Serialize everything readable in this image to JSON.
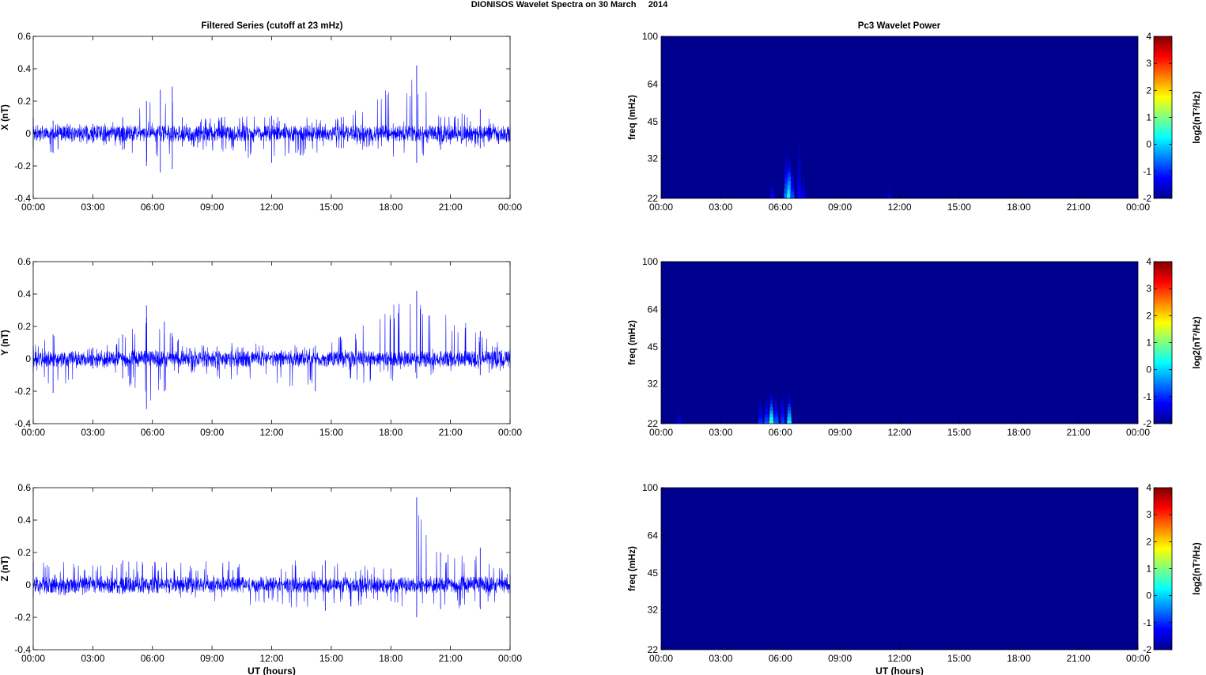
{
  "figure": {
    "title": "DIONISOS Wavelet Spectra on 30 March     2014",
    "left_column_title": "Filtered Series (cutoff at 23 mHz)",
    "right_column_title": "Pc3 Wavelet Power"
  },
  "colors": {
    "series_line": "#0000ff",
    "spectrum_background": "#00008f",
    "axis": "#000000",
    "colormap": [
      "#00008f",
      "#0000ff",
      "#0080ff",
      "#00ffff",
      "#80ff80",
      "#ffff00",
      "#ff8000",
      "#ff0000",
      "#800000"
    ]
  },
  "chart_data": [
    {
      "type": "line",
      "component": "X",
      "ylabel": "X (nT)",
      "xlabel": "",
      "ylim": [
        -0.4,
        0.6
      ],
      "yticks": [
        "-0.4",
        "-0.2",
        "0",
        "0.2",
        "0.4",
        "0.6"
      ],
      "xticks": [
        "00:00",
        "03:00",
        "06:00",
        "09:00",
        "12:00",
        "15:00",
        "18:00",
        "21:00",
        "00:00"
      ],
      "x_range_hours": [
        0,
        24
      ],
      "baseline_amplitude_nT": 0.05,
      "envelope": [
        {
          "hour": 0.0,
          "max": 0.1,
          "min": -0.09
        },
        {
          "hour": 1.0,
          "max": 0.08,
          "min": -0.12
        },
        {
          "hour": 3.0,
          "max": 0.06,
          "min": -0.06
        },
        {
          "hour": 4.5,
          "max": 0.1,
          "min": -0.1
        },
        {
          "hour": 5.7,
          "max": 0.2,
          "min": -0.2
        },
        {
          "hour": 6.4,
          "max": 0.27,
          "min": -0.24
        },
        {
          "hour": 7.0,
          "max": 0.29,
          "min": -0.22
        },
        {
          "hour": 7.5,
          "max": 0.1,
          "min": -0.08
        },
        {
          "hour": 12.0,
          "max": 0.11,
          "min": -0.18
        },
        {
          "hour": 15.5,
          "max": 0.1,
          "min": -0.09
        },
        {
          "hour": 19.3,
          "max": 0.42,
          "min": -0.18
        },
        {
          "hour": 20.5,
          "max": 0.1,
          "min": -0.1
        },
        {
          "hour": 22.5,
          "max": 0.15,
          "min": -0.09
        },
        {
          "hour": 24.0,
          "max": 0.05,
          "min": -0.05
        }
      ]
    },
    {
      "type": "line",
      "component": "Y",
      "ylabel": "Y (nT)",
      "xlabel": "",
      "ylim": [
        -0.4,
        0.6
      ],
      "yticks": [
        "-0.4",
        "-0.2",
        "0",
        "0.2",
        "0.4",
        "0.6"
      ],
      "xticks": [
        "00:00",
        "03:00",
        "06:00",
        "09:00",
        "12:00",
        "15:00",
        "18:00",
        "21:00",
        "00:00"
      ],
      "x_range_hours": [
        0,
        24
      ],
      "baseline_amplitude_nT": 0.05,
      "envelope": [
        {
          "hour": 0.0,
          "max": 0.08,
          "min": -0.08
        },
        {
          "hour": 1.0,
          "max": 0.15,
          "min": -0.21
        },
        {
          "hour": 3.0,
          "max": 0.07,
          "min": -0.06
        },
        {
          "hour": 4.5,
          "max": 0.15,
          "min": -0.12
        },
        {
          "hour": 5.7,
          "max": 0.33,
          "min": -0.31
        },
        {
          "hour": 6.6,
          "max": 0.23,
          "min": -0.2
        },
        {
          "hour": 7.3,
          "max": 0.12,
          "min": -0.09
        },
        {
          "hour": 14.2,
          "max": 0.08,
          "min": -0.2
        },
        {
          "hour": 19.3,
          "max": 0.42,
          "min": -0.12
        },
        {
          "hour": 22.5,
          "max": 0.17,
          "min": -0.1
        },
        {
          "hour": 24.0,
          "max": 0.06,
          "min": -0.06
        }
      ]
    },
    {
      "type": "line",
      "component": "Z",
      "ylabel": "Z (nT)",
      "xlabel": "UT (hours)",
      "ylim": [
        -0.4,
        0.6
      ],
      "yticks": [
        "-0.4",
        "-0.2",
        "0",
        "0.2",
        "0.4",
        "0.6"
      ],
      "xticks": [
        "00:00",
        "03:00",
        "06:00",
        "09:00",
        "12:00",
        "15:00",
        "18:00",
        "21:00",
        "00:00"
      ],
      "x_range_hours": [
        0,
        24
      ],
      "baseline_amplitude_nT": 0.05,
      "envelope": [
        {
          "hour": 0.0,
          "max": 0.14,
          "min": -0.08
        },
        {
          "hour": 4.5,
          "max": 0.15,
          "min": -0.06
        },
        {
          "hour": 14.7,
          "max": 0.15,
          "min": -0.16
        },
        {
          "hour": 18.0,
          "max": 0.1,
          "min": -0.1
        },
        {
          "hour": 19.3,
          "max": 0.54,
          "min": -0.2
        },
        {
          "hour": 20.5,
          "max": 0.2,
          "min": -0.15
        },
        {
          "hour": 22.5,
          "max": 0.23,
          "min": -0.15
        },
        {
          "hour": 24.0,
          "max": 0.06,
          "min": -0.06
        }
      ]
    },
    {
      "type": "heatmap",
      "component": "X",
      "ylabel": "freq (mHz)",
      "xlabel": "",
      "y_scale": "log",
      "ylim": [
        22,
        100
      ],
      "yticks": [
        "22",
        "32",
        "45",
        "64",
        "100"
      ],
      "xticks": [
        "00:00",
        "03:00",
        "06:00",
        "09:00",
        "12:00",
        "15:00",
        "18:00",
        "21:00",
        "00:00"
      ],
      "x_range_hours": [
        0,
        24
      ],
      "colorbar_label": "log2(nT²/Hz)",
      "colorbar_range": [
        -2,
        4
      ],
      "colorbar_ticks": [
        "-2",
        "-1",
        "0",
        "1",
        "2",
        "3",
        "4"
      ],
      "background_value": -2,
      "features": [
        {
          "hour": 5.6,
          "fmax": 26,
          "peak": -1.2
        },
        {
          "hour": 6.3,
          "fmax": 35,
          "peak": -0.5
        },
        {
          "hour": 6.45,
          "fmax": 33,
          "peak": 0.4
        },
        {
          "hour": 6.6,
          "fmax": 30,
          "peak": -0.8
        },
        {
          "hour": 6.95,
          "fmax": 40,
          "peak": -1.3
        },
        {
          "hour": 7.15,
          "fmax": 28,
          "peak": -1.4
        },
        {
          "hour": 11.5,
          "fmax": 25,
          "peak": -1.6
        }
      ]
    },
    {
      "type": "heatmap",
      "component": "Y",
      "ylabel": "freq (mHz)",
      "xlabel": "",
      "y_scale": "log",
      "ylim": [
        22,
        100
      ],
      "yticks": [
        "22",
        "32",
        "45",
        "64",
        "100"
      ],
      "xticks": [
        "00:00",
        "03:00",
        "06:00",
        "09:00",
        "12:00",
        "15:00",
        "18:00",
        "21:00",
        "00:00"
      ],
      "x_range_hours": [
        0,
        24
      ],
      "colorbar_label": "log2(nT²/Hz)",
      "colorbar_range": [
        -2,
        4
      ],
      "colorbar_ticks": [
        "-2",
        "-1",
        "0",
        "1",
        "2",
        "3",
        "4"
      ],
      "background_value": -2,
      "features": [
        {
          "hour": 0.9,
          "fmax": 25,
          "peak": -1.3
        },
        {
          "hour": 5.0,
          "fmax": 28,
          "peak": -1.0
        },
        {
          "hour": 5.3,
          "fmax": 29,
          "peak": -0.8
        },
        {
          "hour": 5.55,
          "fmax": 30,
          "peak": 0.6
        },
        {
          "hour": 5.8,
          "fmax": 29,
          "peak": -0.7
        },
        {
          "hour": 6.1,
          "fmax": 30,
          "peak": -0.9
        },
        {
          "hour": 6.45,
          "fmax": 30,
          "peak": 0.2
        }
      ]
    },
    {
      "type": "heatmap",
      "component": "Z",
      "ylabel": "freq (mHz)",
      "xlabel": "UT (hours)",
      "y_scale": "log",
      "ylim": [
        22,
        100
      ],
      "yticks": [
        "22",
        "32",
        "45",
        "64",
        "100"
      ],
      "xticks": [
        "00:00",
        "03:00",
        "06:00",
        "09:00",
        "12:00",
        "15:00",
        "18:00",
        "21:00",
        "00:00"
      ],
      "x_range_hours": [
        0,
        24
      ],
      "colorbar_label": "log2(nT²/Hz)",
      "colorbar_range": [
        -2,
        4
      ],
      "colorbar_ticks": [
        "-2",
        "-1",
        "0",
        "1",
        "2",
        "3",
        "4"
      ],
      "background_value": -2,
      "features": []
    }
  ]
}
